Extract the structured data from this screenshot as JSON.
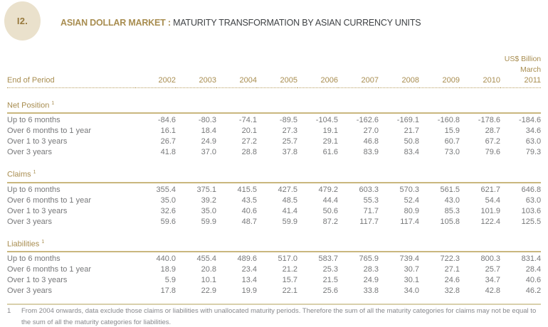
{
  "header": {
    "badge_label": "I2.",
    "title_primary": "ASIAN DOLLAR MARKET :",
    "title_secondary": "MATURITY TRANSFORMATION BY ASIAN CURRENCY UNITS"
  },
  "table": {
    "unit_label": "US$ Billion",
    "month_label": "March",
    "row_header_label": "End of Period",
    "years": [
      "2002",
      "2003",
      "2004",
      "2005",
      "2006",
      "2007",
      "2008",
      "2009",
      "2010",
      "2011"
    ],
    "sections": [
      {
        "title": "Net Position",
        "footnote_ref": "1",
        "rows": [
          {
            "label": "Up to 6 months",
            "values": [
              "-84.6",
              "-80.3",
              "-74.1",
              "-89.5",
              "-104.5",
              "-162.6",
              "-169.1",
              "-160.8",
              "-178.6",
              "-184.6"
            ]
          },
          {
            "label": "Over 6 months to 1 year",
            "values": [
              "16.1",
              "18.4",
              "20.1",
              "27.3",
              "19.1",
              "27.0",
              "21.7",
              "15.9",
              "28.7",
              "34.6"
            ]
          },
          {
            "label": "Over 1 to 3 years",
            "values": [
              "26.7",
              "24.9",
              "27.2",
              "25.7",
              "29.1",
              "46.8",
              "50.8",
              "60.7",
              "67.2",
              "63.0"
            ]
          },
          {
            "label": "Over 3 years",
            "values": [
              "41.8",
              "37.0",
              "28.8",
              "37.8",
              "61.6",
              "83.9",
              "83.4",
              "73.0",
              "79.6",
              "79.3"
            ]
          }
        ]
      },
      {
        "title": "Claims",
        "footnote_ref": "1",
        "rows": [
          {
            "label": "Up to 6 months",
            "values": [
              "355.4",
              "375.1",
              "415.5",
              "427.5",
              "479.2",
              "603.3",
              "570.3",
              "561.5",
              "621.7",
              "646.8"
            ]
          },
          {
            "label": "Over 6 months to 1 year",
            "values": [
              "35.0",
              "39.2",
              "43.5",
              "48.5",
              "44.4",
              "55.3",
              "52.4",
              "43.0",
              "54.4",
              "63.0"
            ]
          },
          {
            "label": "Over 1 to 3 years",
            "values": [
              "32.6",
              "35.0",
              "40.6",
              "41.4",
              "50.6",
              "71.7",
              "80.9",
              "85.3",
              "101.9",
              "103.6"
            ]
          },
          {
            "label": "Over 3 years",
            "values": [
              "59.6",
              "59.9",
              "48.7",
              "59.9",
              "87.2",
              "117.7",
              "117.4",
              "105.8",
              "122.4",
              "125.5"
            ]
          }
        ]
      },
      {
        "title": "Liabilities",
        "footnote_ref": "1",
        "rows": [
          {
            "label": "Up to 6 months",
            "values": [
              "440.0",
              "455.4",
              "489.6",
              "517.0",
              "583.7",
              "765.9",
              "739.4",
              "722.3",
              "800.3",
              "831.4"
            ]
          },
          {
            "label": "Over 6 months to 1 year",
            "values": [
              "18.9",
              "20.8",
              "23.4",
              "21.2",
              "25.3",
              "28.3",
              "30.7",
              "27.1",
              "25.7",
              "28.4"
            ]
          },
          {
            "label": "Over 1 to 3 years",
            "values": [
              "5.9",
              "10.1",
              "13.4",
              "15.7",
              "21.5",
              "24.9",
              "30.1",
              "24.6",
              "34.7",
              "40.6"
            ]
          },
          {
            "label": "Over 3 years",
            "values": [
              "17.8",
              "22.9",
              "19.9",
              "22.1",
              "25.6",
              "33.8",
              "34.0",
              "32.8",
              "42.8",
              "46.2"
            ]
          }
        ]
      }
    ]
  },
  "footnote": {
    "ref": "1",
    "text": "From 2004 onwards, data exclude those claims or liabilities with unallocated maturity periods. Therefore the sum of all the maturity categories for claims may not be equal to the sum of all the maturity categories for liabilities."
  },
  "colors": {
    "gold": "#a88d50",
    "gold-dark": "#97793d",
    "beige": "#eae1cc",
    "rule-solid": "#c9b77e",
    "rule-light": "#d9cfab",
    "dot": "#b89e60",
    "text-gray": "#77787a",
    "title-dark": "#3f4245",
    "footnote-gray": "#87888c",
    "bg": "#ffffff"
  }
}
